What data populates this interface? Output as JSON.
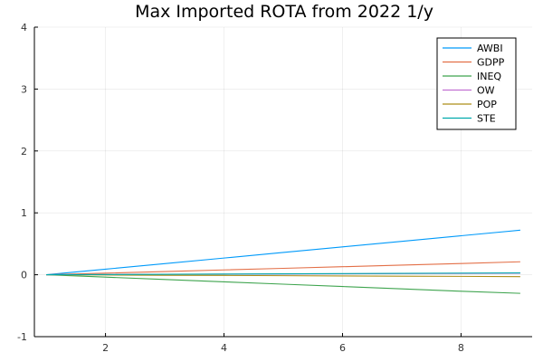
{
  "chart_data": {
    "type": "line",
    "title": "Max Imported ROTA from 2022 1/y",
    "xlabel": "",
    "ylabel": "",
    "x": [
      1,
      2,
      3,
      4,
      5,
      6,
      7,
      8,
      9
    ],
    "xlim": [
      0.8,
      9.2
    ],
    "ylim": [
      -1,
      4
    ],
    "xticks": [
      2,
      4,
      6,
      8
    ],
    "yticks": [
      -1,
      0,
      1,
      2,
      3,
      4
    ],
    "grid": true,
    "legend_position": "top-right",
    "series": [
      {
        "name": "AWBI",
        "color": "#009AFA",
        "values": [
          0,
          0.09,
          0.18,
          0.27,
          0.36,
          0.45,
          0.54,
          0.63,
          0.72
        ]
      },
      {
        "name": "GDPP",
        "color": "#E36F47",
        "values": [
          0,
          0.026,
          0.052,
          0.078,
          0.104,
          0.13,
          0.156,
          0.182,
          0.21
        ]
      },
      {
        "name": "INEQ",
        "color": "#3EA44E",
        "values": [
          0,
          -0.038,
          -0.076,
          -0.114,
          -0.152,
          -0.19,
          -0.228,
          -0.266,
          -0.3
        ]
      },
      {
        "name": "OW",
        "color": "#C271D2",
        "values": [
          0,
          0.003,
          0.006,
          0.009,
          0.012,
          0.015,
          0.018,
          0.021,
          0.025
        ]
      },
      {
        "name": "POP",
        "color": "#AC8E18",
        "values": [
          0,
          -0.004,
          -0.008,
          -0.011,
          -0.015,
          -0.019,
          -0.023,
          -0.026,
          -0.03
        ]
      },
      {
        "name": "STE",
        "color": "#00A9AD",
        "values": [
          0,
          0.004,
          0.008,
          0.011,
          0.015,
          0.019,
          0.023,
          0.026,
          0.03
        ]
      }
    ]
  }
}
